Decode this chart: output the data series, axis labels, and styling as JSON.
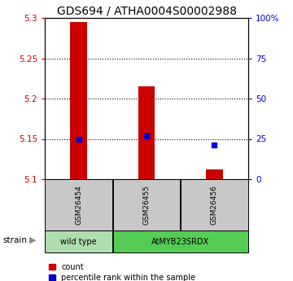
{
  "title": "GDS694 / ATHA0004S00002988",
  "samples": [
    "GSM26454",
    "GSM26455",
    "GSM26456"
  ],
  "red_values": [
    5.295,
    5.215,
    5.112
  ],
  "blue_values": [
    25.0,
    27.0,
    21.0
  ],
  "ylim_left": [
    5.1,
    5.3
  ],
  "ylim_right": [
    0,
    100
  ],
  "yticks_left": [
    5.1,
    5.15,
    5.2,
    5.25,
    5.3
  ],
  "yticks_right": [
    0,
    25,
    50,
    75,
    100
  ],
  "ytick_labels_right": [
    "0",
    "25",
    "50",
    "75",
    "100%"
  ],
  "grid_lines": [
    5.15,
    5.2,
    5.25
  ],
  "red_color": "#cc0000",
  "blue_color": "#0000cc",
  "sample_bg": "#c8c8c8",
  "wt_color": "#b0ddb0",
  "myx_color": "#55cc55",
  "strain_arrow_label": "strain",
  "legend_red": "count",
  "legend_blue": "percentile rank within the sample",
  "title_fontsize": 10,
  "tick_fontsize": 7.5,
  "label_fontsize": 7.5
}
